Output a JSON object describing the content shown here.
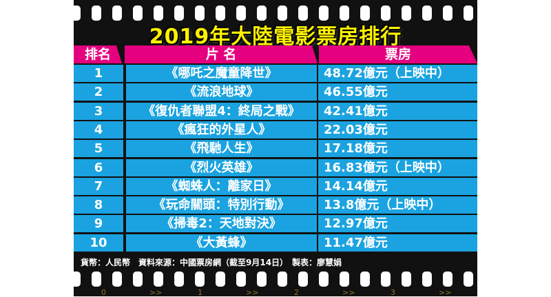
{
  "title": "2019年大陸電影票房排行",
  "headers": {
    "rank": "排名",
    "film": "片 名",
    "box": "票房"
  },
  "rows": [
    {
      "rank": "1",
      "film": "《哪吒之魔童降世》",
      "box": "48.72億元（上映中）"
    },
    {
      "rank": "2",
      "film": "《流浪地球》",
      "box": "46.55億元"
    },
    {
      "rank": "3",
      "film": "《復仇者聯盟4：終局之戰》",
      "box": "42.41億元"
    },
    {
      "rank": "4",
      "film": "《瘋狂的外星人》",
      "box": "22.03億元"
    },
    {
      "rank": "5",
      "film": "《飛馳人生》",
      "box": "17.18億元"
    },
    {
      "rank": "6",
      "film": "《烈火英雄》",
      "box": "16.83億元（上映中）"
    },
    {
      "rank": "7",
      "film": "《蜘蛛人：離家日》",
      "box": "14.14億元"
    },
    {
      "rank": "8",
      "film": "《玩命關頭：特別行動》",
      "box": "13.8億元（上映中）"
    },
    {
      "rank": "9",
      "film": "《掃毒2：天地對決》",
      "box": "12.97億元"
    },
    {
      "rank": "10",
      "film": "《大黃蜂》",
      "box": "11.47億元"
    }
  ],
  "footer": "貨幣：人民幣　資料來源：中國票房網（截至9月14日）　製表：廖慧娟",
  "film_numbers": [
    "0",
    ">>",
    "1",
    ">>",
    "2",
    ">>",
    "3",
    ">>"
  ],
  "colors": {
    "header": "#e4007f",
    "row": "#1aa3e0",
    "title": "#fff200",
    "film": "#111111"
  }
}
